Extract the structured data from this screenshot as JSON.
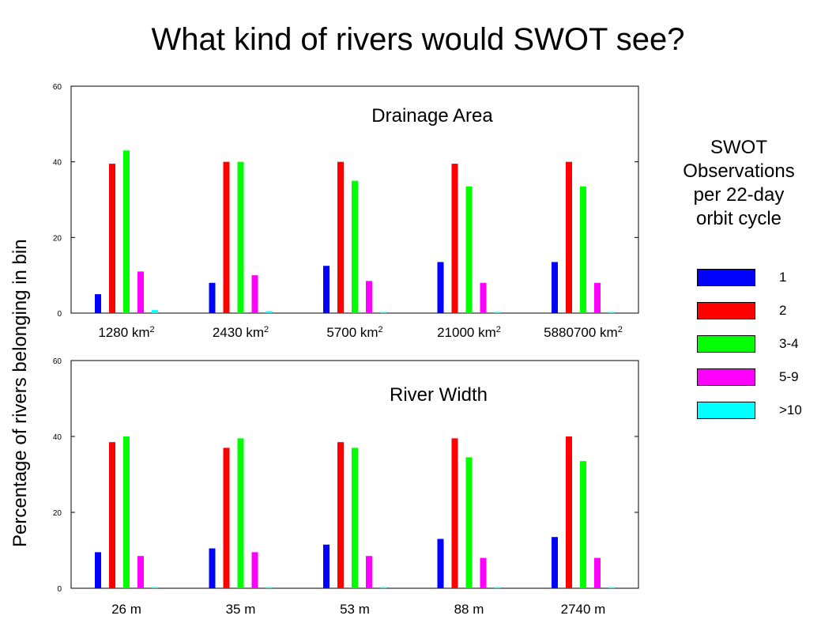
{
  "page": {
    "title": "What kind of rivers would SWOT see?",
    "ylabel": "Percentage of rivers belonging in bin"
  },
  "legend": {
    "title_lines": [
      "SWOT",
      "Observations",
      "per 22-day",
      "orbit cycle"
    ],
    "items": [
      {
        "label": "1",
        "color": "#0000ff"
      },
      {
        "label": "2",
        "color": "#ff0000"
      },
      {
        "label": "3-4",
        "color": "#00ff00"
      },
      {
        "label": "5-9",
        "color": "#ff00ff"
      },
      {
        "label": ">10",
        "color": "#00ffff"
      }
    ]
  },
  "chart_data": [
    {
      "type": "bar",
      "title": "Drainage Area",
      "categories": [
        {
          "base": "1280 km",
          "sup": "2"
        },
        {
          "base": "2430 km",
          "sup": "2"
        },
        {
          "base": "5700 km",
          "sup": "2"
        },
        {
          "base": "21000 km",
          "sup": "2"
        },
        {
          "base": "5880700 km",
          "sup": "2"
        }
      ],
      "series": [
        {
          "name": "1",
          "color": "#0000ff",
          "values": [
            5,
            8,
            12.5,
            13.5,
            13.5
          ]
        },
        {
          "name": "2",
          "color": "#ff0000",
          "values": [
            39.5,
            40,
            40,
            39.5,
            40
          ]
        },
        {
          "name": "3-4",
          "color": "#00ff00",
          "values": [
            43,
            40,
            35,
            33.5,
            33.5
          ]
        },
        {
          "name": "5-9",
          "color": "#ff00ff",
          "values": [
            11,
            10,
            8.5,
            8,
            8
          ]
        },
        {
          "name": ">10",
          "color": "#00ffff",
          "values": [
            0.8,
            0.5,
            0.3,
            0.3,
            0.3
          ]
        }
      ],
      "yticks": [
        0,
        20,
        40,
        60
      ],
      "ylim": [
        0,
        60
      ],
      "grid": false
    },
    {
      "type": "bar",
      "title": "River Width",
      "categories": [
        {
          "base": "26 m",
          "sup": ""
        },
        {
          "base": "35 m",
          "sup": ""
        },
        {
          "base": "53 m",
          "sup": ""
        },
        {
          "base": "88 m",
          "sup": ""
        },
        {
          "base": "2740 m",
          "sup": ""
        }
      ],
      "series": [
        {
          "name": "1",
          "color": "#0000ff",
          "values": [
            9.5,
            10.5,
            11.5,
            13,
            13.5
          ]
        },
        {
          "name": "2",
          "color": "#ff0000",
          "values": [
            38.5,
            37,
            38.5,
            39.5,
            40
          ]
        },
        {
          "name": "3-4",
          "color": "#00ff00",
          "values": [
            40,
            39.5,
            37,
            34.5,
            33.5
          ]
        },
        {
          "name": "5-9",
          "color": "#ff00ff",
          "values": [
            8.5,
            9.5,
            8.5,
            8,
            8
          ]
        },
        {
          "name": ">10",
          "color": "#00ffff",
          "values": [
            0.3,
            0.3,
            0.3,
            0.3,
            0.3
          ]
        }
      ],
      "yticks": [
        0,
        20,
        40,
        60
      ],
      "ylim": [
        0,
        60
      ],
      "grid": false
    }
  ]
}
